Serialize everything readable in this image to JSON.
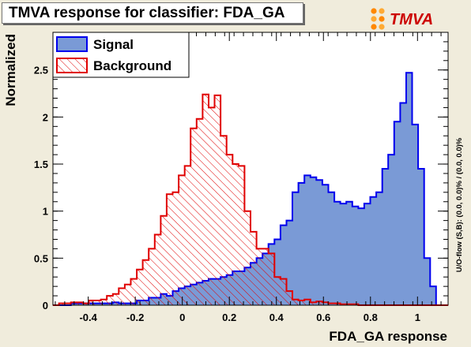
{
  "title": "TMVA response for classifier: FDA_GA",
  "logo": {
    "text": "TMVA",
    "accent": "#ff8800",
    "icon": "tmva-logo-icon"
  },
  "colors": {
    "background": "#f0ecdc",
    "signal_fill": "#7a9ad6",
    "signal_line": "#0000ee",
    "background_line": "#e00000",
    "background_hatch": "#e00000"
  },
  "side_note": "U/O-flow (S,B): (0.0, 0.0)% / (0.0, 0.0)%",
  "chart_data": {
    "type": "area",
    "title": "TMVA response for classifier: FDA_GA",
    "xlabel": "FDA_GA response",
    "ylabel": "Normalized",
    "xlim": [
      -0.55,
      1.13
    ],
    "ylim": [
      0,
      2.9
    ],
    "xticks": [
      -0.4,
      -0.2,
      0,
      0.2,
      0.4,
      0.6,
      0.8,
      1
    ],
    "xtick_labels": [
      "-0.4",
      "-0.2",
      "0",
      "0.2",
      "0.4",
      "0.6",
      "0.8",
      "1"
    ],
    "yticks": [
      0,
      0.5,
      1,
      1.5,
      2,
      2.5
    ],
    "ytick_labels": [
      "0",
      "0.5",
      "1",
      "1.5",
      "2",
      "2.5"
    ],
    "grid": false,
    "legend": "top-left",
    "x_edges": [
      -0.55,
      -0.5,
      -0.45,
      -0.4,
      -0.35,
      -0.3,
      -0.25,
      -0.2,
      -0.15,
      -0.1,
      -0.05,
      0,
      0.05,
      0.1,
      0.15,
      0.2,
      0.25,
      0.3,
      0.35,
      0.4,
      0.45,
      0.5,
      0.55,
      0.6,
      0.65,
      0.7,
      0.75,
      0.8,
      0.85,
      0.9,
      0.95,
      1,
      1.05,
      1.1
    ],
    "series": [
      {
        "name": "Signal",
        "style": "filled",
        "values": [
          0.0,
          0.02,
          0.02,
          0.02,
          0.03,
          0.02,
          0.05,
          0.08,
          0.12,
          0.16,
          0.22,
          0.26,
          0.3,
          0.36,
          0.43,
          0.53,
          0.66,
          0.87,
          1.25,
          1.36,
          1.3,
          1.1,
          1.08,
          1.05,
          1.08,
          1.2,
          1.65,
          1.97,
          2.47,
          1.4,
          0.5,
          0.2,
          0.0
        ],
        "fine_values": [
          0.0,
          0.0,
          0.0,
          0.02,
          0.02,
          0.02,
          0.02,
          0.02,
          0.02,
          0.02,
          0.03,
          0.02,
          0.02,
          0.02,
          0.05,
          0.05,
          0.08,
          0.08,
          0.12,
          0.1,
          0.15,
          0.18,
          0.2,
          0.22,
          0.24,
          0.26,
          0.28,
          0.28,
          0.3,
          0.32,
          0.36,
          0.36,
          0.4,
          0.45,
          0.5,
          0.55,
          0.65,
          0.7,
          0.85,
          0.9,
          1.2,
          1.3,
          1.38,
          1.36,
          1.33,
          1.28,
          1.2,
          1.1,
          1.08,
          1.1,
          1.05,
          1.03,
          1.08,
          1.15,
          1.2,
          1.45,
          1.6,
          1.95,
          2.15,
          2.47,
          1.92,
          1.45,
          0.5,
          0.2,
          0.0,
          0.0
        ]
      },
      {
        "name": "Background",
        "style": "hatched",
        "values": [
          0.02,
          0.02,
          0.03,
          0.02,
          0.05,
          0.05,
          0.1,
          0.2,
          0.38,
          0.62,
          0.9,
          1.3,
          1.62,
          2.1,
          2.2,
          1.5,
          1.0,
          0.6,
          0.37,
          0.27,
          0.14,
          0.06,
          0.04,
          0.03,
          0.01,
          0.0,
          0.0,
          0.0,
          0.0,
          0.0,
          0.0,
          0.0,
          0.0
        ],
        "fine_values": [
          0.0,
          0.02,
          0.02,
          0.03,
          0.03,
          0.02,
          0.05,
          0.05,
          0.06,
          0.1,
          0.12,
          0.18,
          0.22,
          0.28,
          0.38,
          0.48,
          0.6,
          0.75,
          0.95,
          1.18,
          1.2,
          1.38,
          1.48,
          1.88,
          1.98,
          2.24,
          2.1,
          2.23,
          1.8,
          1.6,
          1.5,
          1.48,
          1.0,
          0.78,
          0.6,
          0.6,
          0.55,
          0.3,
          0.28,
          0.15,
          0.06,
          0.05,
          0.06,
          0.03,
          0.04,
          0.03,
          0.02,
          0.02,
          0.01,
          0.01,
          0.01,
          0.0,
          0.0,
          0.0,
          0.0,
          0.0,
          0.0,
          0.0,
          0.0,
          0.0,
          0.0,
          0.0,
          0.0,
          0.0,
          0.0,
          0.0
        ]
      }
    ]
  }
}
